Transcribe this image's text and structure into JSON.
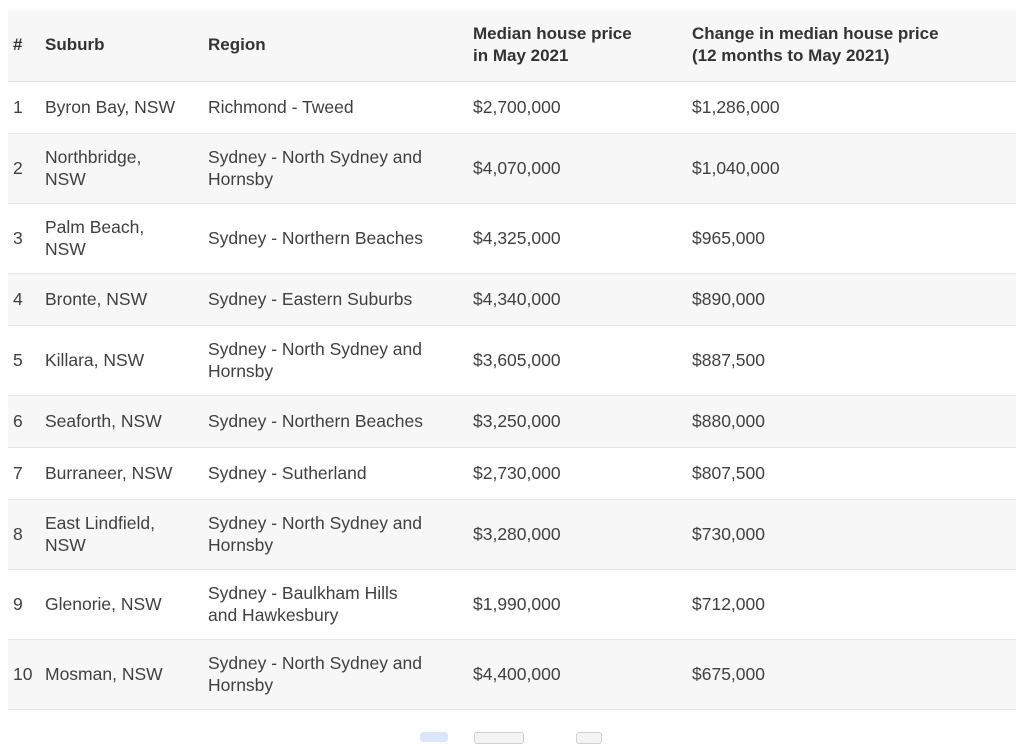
{
  "table": {
    "headers": {
      "num": "#",
      "suburb": "Suburb",
      "region": "Region",
      "median_line1": "Median house price",
      "median_line2": "in May 2021",
      "change_line1": "Change in median house price",
      "change_line2": "(12 months to May 2021)"
    },
    "rows": [
      {
        "num": "1",
        "suburb": [
          "Byron Bay, NSW"
        ],
        "region": [
          "Richmond - Tweed"
        ],
        "median": "$2,700,000",
        "change": "$1,286,000"
      },
      {
        "num": "2",
        "suburb": [
          "Northbridge,",
          "NSW"
        ],
        "region": [
          "Sydney - North Sydney and",
          "Hornsby"
        ],
        "median": "$4,070,000",
        "change": "$1,040,000"
      },
      {
        "num": "3",
        "suburb": [
          "Palm Beach,",
          "NSW"
        ],
        "region": [
          "Sydney - Northern Beaches"
        ],
        "median": "$4,325,000",
        "change": "$965,000"
      },
      {
        "num": "4",
        "suburb": [
          "Bronte, NSW"
        ],
        "region": [
          "Sydney - Eastern Suburbs"
        ],
        "median": "$4,340,000",
        "change": "$890,000"
      },
      {
        "num": "5",
        "suburb": [
          "Killara, NSW"
        ],
        "region": [
          "Sydney - North Sydney and",
          "Hornsby"
        ],
        "median": "$3,605,000",
        "change": "$887,500"
      },
      {
        "num": "6",
        "suburb": [
          "Seaforth, NSW"
        ],
        "region": [
          "Sydney - Northern Beaches"
        ],
        "median": "$3,250,000",
        "change": "$880,000"
      },
      {
        "num": "7",
        "suburb": [
          "Burraneer, NSW"
        ],
        "region": [
          "Sydney - Sutherland"
        ],
        "median": "$2,730,000",
        "change": "$807,500"
      },
      {
        "num": "8",
        "suburb": [
          "East Lindfield,",
          "NSW"
        ],
        "region": [
          "Sydney - North Sydney and",
          "Hornsby"
        ],
        "median": "$3,280,000",
        "change": "$730,000"
      },
      {
        "num": "9",
        "suburb": [
          "Glenorie, NSW"
        ],
        "region": [
          "Sydney - Baulkham Hills",
          "and Hawkesbury"
        ],
        "median": "$1,990,000",
        "change": "$712,000"
      },
      {
        "num": "10",
        "suburb": [
          "Mosman, NSW"
        ],
        "region": [
          "Sydney - North Sydney and",
          "Hornsby"
        ],
        "median": "$4,400,000",
        "change": "$675,000"
      }
    ]
  },
  "colors": {
    "header_bg": "#f7f7f7",
    "stripe_bg": "#f7f7f7",
    "border": "#e6e6e6",
    "pager_active": "#dbe6fb",
    "pager_item": "#e3e3e3"
  }
}
